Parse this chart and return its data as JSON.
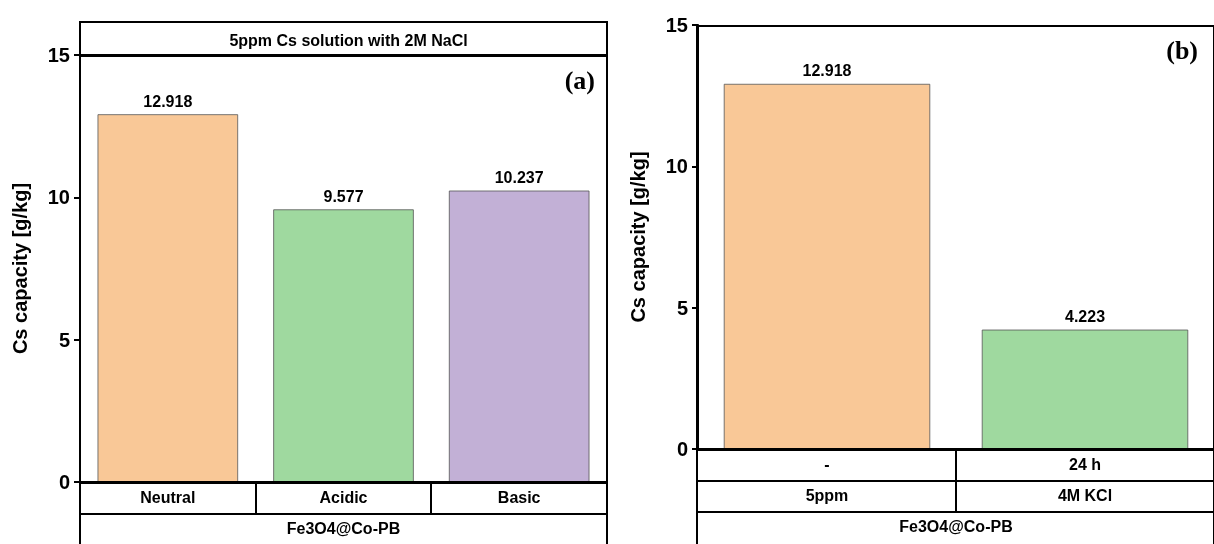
{
  "chart_data": [
    {
      "type": "bar",
      "title": "5ppm Cs solution with 2M NaCl",
      "categories": [
        "Neutral",
        "Acidic",
        "Basic"
      ],
      "values": [
        12.918,
        9.577,
        10.237
      ],
      "colors": [
        "#f9c897",
        "#9fd99f",
        "#c2b0d6"
      ],
      "ylabel": "Cs capacity [g/kg]",
      "xlabel": "Fe3O4@Co-PB",
      "ylim": [
        0,
        15
      ],
      "yticks": [
        0,
        5,
        10,
        15
      ],
      "data_labels": true,
      "grid": false,
      "annotations": [
        "(a)"
      ]
    },
    {
      "type": "bar",
      "categories": [
        "-\n5ppm",
        "24 h\n4M KCl"
      ],
      "values": [
        12.918,
        4.223
      ],
      "colors": [
        "#f9c897",
        "#9fd99f"
      ],
      "ylabel": "Cs capacity [g/kg]",
      "xlabel": "Fe3O4@Co-PB",
      "ylim": [
        0,
        15
      ],
      "yticks": [
        0,
        5,
        10,
        15
      ],
      "data_labels": true,
      "grid": false,
      "annotations": [
        "(b)"
      ]
    }
  ]
}
